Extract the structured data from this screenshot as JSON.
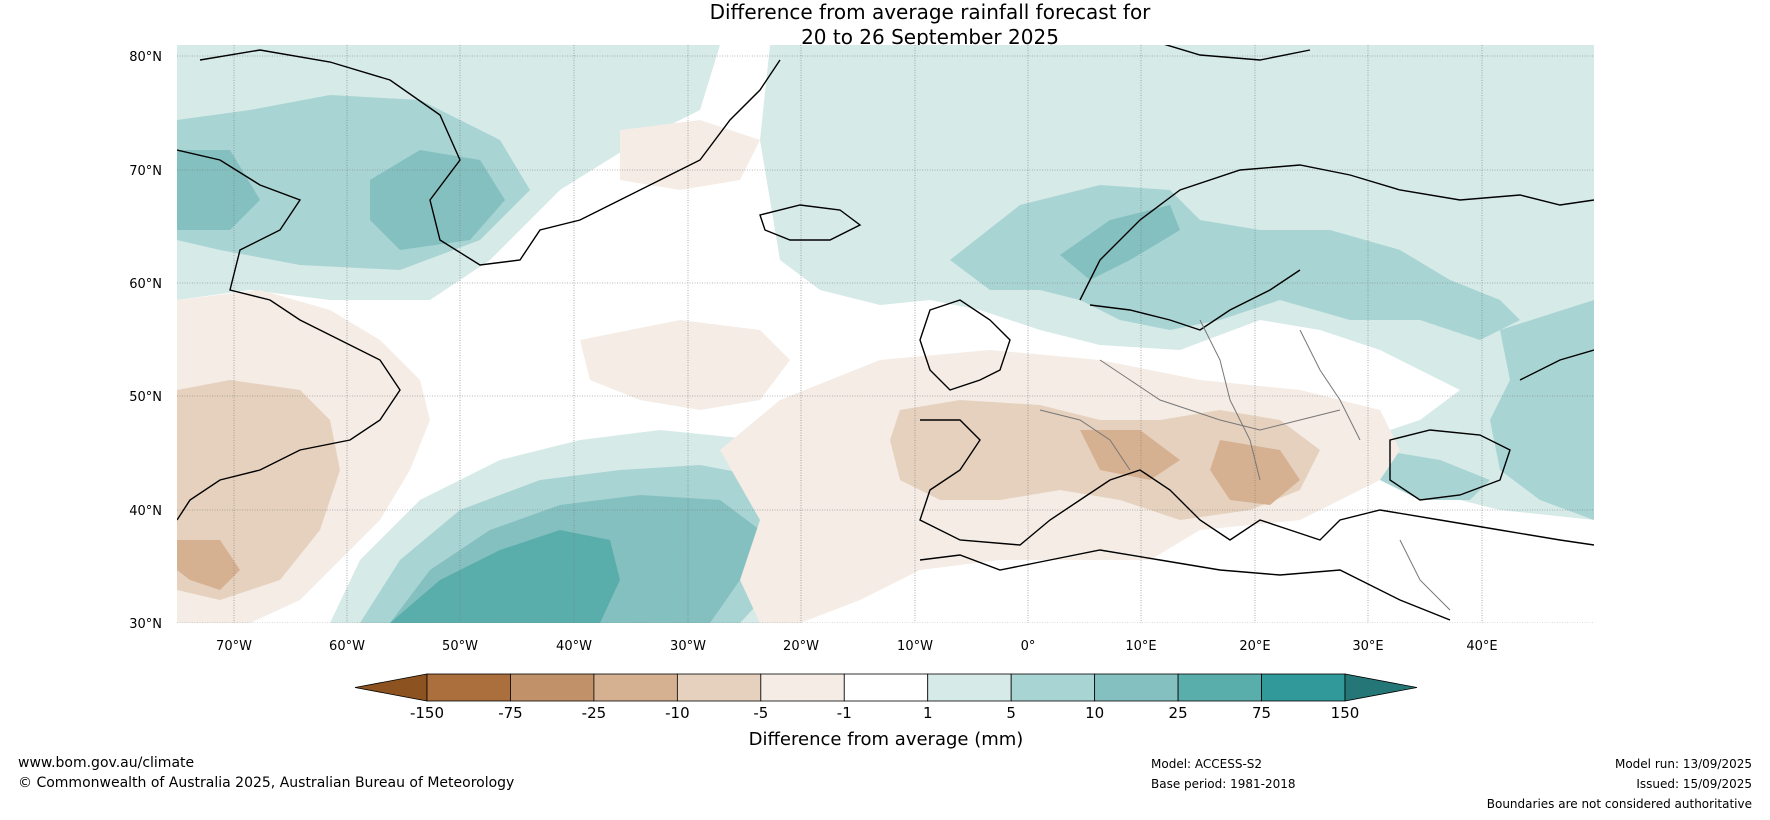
{
  "title": {
    "line1": "Difference from average rainfall forecast for",
    "line2": "20 to 26 September 2025"
  },
  "map": {
    "lat_labels": [
      "80°N",
      "70°N",
      "60°N",
      "50°N",
      "40°N",
      "30°N"
    ],
    "lon_labels": [
      "70°W",
      "60°W",
      "50°W",
      "40°W",
      "30°W",
      "20°W",
      "10°W",
      "0°",
      "10°E",
      "20°E",
      "30°E",
      "40°E"
    ],
    "extent": {
      "lon_min": -75,
      "lon_max": 50,
      "lat_min": 30,
      "lat_max": 81
    }
  },
  "colorbar": {
    "ticks": [
      "-150",
      "-75",
      "-25",
      "-10",
      "-5",
      "-1",
      "1",
      "5",
      "10",
      "25",
      "75",
      "150"
    ],
    "colors": [
      "#8c5320",
      "#aa6f3d",
      "#c1926a",
      "#d5b191",
      "#e6d1be",
      "#f4ece5",
      "#ffffff",
      "#d6eae8",
      "#a8d4d3",
      "#84c0bf",
      "#59aeac",
      "#319999",
      "#257777"
    ],
    "label": "Difference from average (mm)"
  },
  "footer": {
    "website": "www.bom.gov.au/climate",
    "copyright": "© Commonwealth of Australia 2025, Australian Bureau of Meteorology",
    "model": "Model: ACCESS-S2",
    "base_period": "Base period: 1981-2018",
    "model_run": "Model run: 13/09/2025",
    "issued": "Issued: 15/09/2025",
    "disclaimer": "Boundaries are not considered authoritative"
  }
}
